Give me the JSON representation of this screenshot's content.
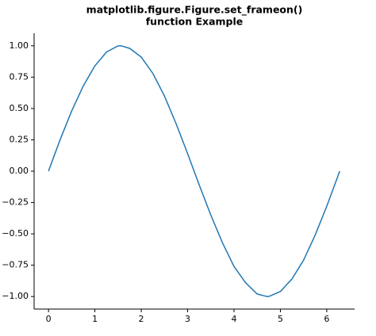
{
  "chart_data": {
    "type": "line",
    "title": [
      "matplotlib.figure.Figure.set_frameon()",
      "function Example"
    ],
    "x": [
      0,
      0.25,
      0.5,
      0.75,
      1,
      1.25,
      1.5,
      1.57,
      1.75,
      2,
      2.25,
      2.5,
      2.75,
      3,
      3.25,
      3.5,
      3.75,
      4,
      4.25,
      4.5,
      4.71,
      4.75,
      5,
      5.25,
      5.5,
      5.75,
      6,
      6.25,
      6.28
    ],
    "series": [
      {
        "color": "#1f77b4",
        "values": [
          0,
          0.25,
          0.48,
          0.68,
          0.84,
          0.95,
          1.0,
          1.0,
          0.98,
          0.91,
          0.78,
          0.6,
          0.38,
          0.14,
          -0.11,
          -0.35,
          -0.57,
          -0.76,
          -0.89,
          -0.98,
          -1.0,
          -1.0,
          -0.96,
          -0.86,
          -0.71,
          -0.51,
          -0.28,
          -0.03,
          0
        ]
      }
    ],
    "xlim": [
      -0.31,
      6.6
    ],
    "xticks": [
      0,
      1,
      2,
      3,
      4,
      5,
      6
    ],
    "ylim": [
      -1.1,
      1.1
    ],
    "yticks": [
      {
        "value": -1,
        "label": "−1.00"
      },
      {
        "value": -0.75,
        "label": "−0.75"
      },
      {
        "value": -0.5,
        "label": "−0.50"
      },
      {
        "value": -0.25,
        "label": "−0.25"
      },
      {
        "value": 0,
        "label": "0.00"
      },
      {
        "value": 0.25,
        "label": "0.25"
      },
      {
        "value": 0.5,
        "label": "0.50"
      },
      {
        "value": 0.75,
        "label": "0.75"
      },
      {
        "value": 1,
        "label": "1.00"
      }
    ],
    "grid": false
  }
}
